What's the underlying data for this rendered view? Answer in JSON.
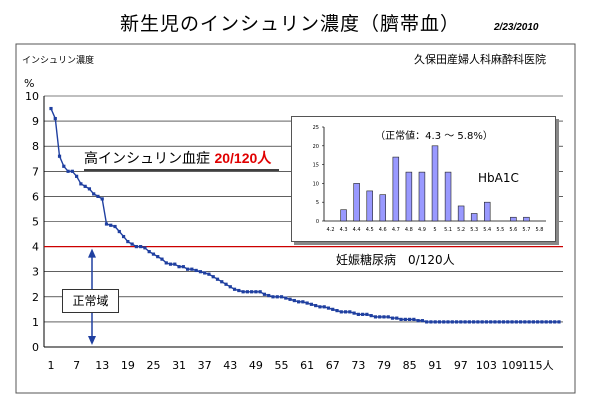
{
  "title": "新生児のインシュリン濃度（臍帯血）",
  "date": "2/23/2010",
  "ylabel": "インシュリン濃度",
  "yunit": "%",
  "clinic": "久保田産婦人科麻酔科医院",
  "annotations": {
    "hyper_label": "高インシュリン血症",
    "hyper_count": "20/120人",
    "gdm": "妊娠糖尿病　0/120人",
    "normal_range": "正常域"
  },
  "colors": {
    "series": "#1f3fa0",
    "threshold": "#cc0000",
    "bar": "#9999ff"
  },
  "chart_data": [
    {
      "type": "line",
      "x_ticks": [
        "1",
        "7",
        "13",
        "19",
        "25",
        "31",
        "37",
        "43",
        "49",
        "55",
        "61",
        "67",
        "73",
        "79",
        "85",
        "91",
        "97",
        "103",
        "109",
        "115人"
      ],
      "y_ticks": [
        "0",
        "1",
        "2",
        "3",
        "4",
        "5",
        "6",
        "7",
        "8",
        "9",
        "10"
      ],
      "ylim": [
        0,
        10
      ],
      "xlim": [
        1,
        120
      ],
      "threshold": 4,
      "grid": "horizontal",
      "values": [
        9.5,
        9.1,
        7.6,
        7.2,
        7.0,
        7.0,
        6.8,
        6.5,
        6.4,
        6.3,
        6.1,
        6.0,
        5.9,
        4.9,
        4.85,
        4.8,
        4.6,
        4.4,
        4.2,
        4.1,
        4.0,
        4.0,
        3.95,
        3.8,
        3.7,
        3.6,
        3.5,
        3.35,
        3.3,
        3.3,
        3.2,
        3.2,
        3.1,
        3.1,
        3.05,
        3.0,
        2.95,
        2.9,
        2.8,
        2.7,
        2.6,
        2.5,
        2.4,
        2.3,
        2.25,
        2.2,
        2.2,
        2.2,
        2.2,
        2.2,
        2.1,
        2.05,
        2.0,
        2.0,
        2.0,
        1.95,
        1.9,
        1.85,
        1.8,
        1.8,
        1.75,
        1.7,
        1.65,
        1.6,
        1.6,
        1.55,
        1.5,
        1.45,
        1.4,
        1.4,
        1.4,
        1.35,
        1.3,
        1.3,
        1.3,
        1.25,
        1.2,
        1.2,
        1.2,
        1.2,
        1.15,
        1.15,
        1.1,
        1.1,
        1.1,
        1.1,
        1.05,
        1.05,
        1.0,
        1.0,
        1.0,
        1.0,
        1.0,
        1.0,
        1.0,
        1.0,
        1.0,
        1.0,
        1.0,
        1.0,
        1.0,
        1.0,
        1.0,
        1.0,
        1.0,
        1.0,
        1.0,
        1.0,
        1.0,
        1.0,
        1.0,
        1.0,
        1.0,
        1.0,
        1.0,
        1.0,
        1.0,
        1.0,
        1.0,
        1.0
      ]
    },
    {
      "type": "bar",
      "title": "（正常値：4.3 ～ 5.8%）",
      "series_label": "HbA1C",
      "categories": [
        "4.2",
        "4.3",
        "4.4",
        "4.5",
        "4.6",
        "4.7",
        "4.8",
        "4.9",
        "5",
        "5.1",
        "5.2",
        "5.3",
        "5.4",
        "5.5",
        "5.6",
        "5.7",
        "5.8"
      ],
      "values": [
        0,
        3,
        10,
        8,
        7,
        17,
        13,
        13,
        20,
        13,
        4,
        2,
        5,
        0,
        1,
        1,
        0
      ],
      "y_ticks": [
        "0",
        "5",
        "10",
        "15",
        "20",
        "25"
      ],
      "ylim": [
        0,
        25
      ]
    }
  ]
}
